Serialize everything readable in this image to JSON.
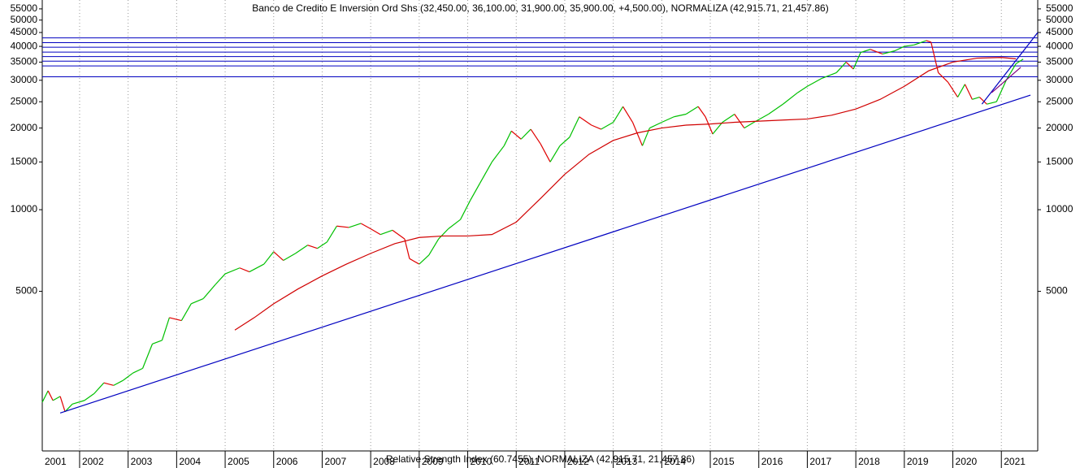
{
  "chart_data": {
    "type": "line",
    "title": "Banco de Credito E Inversion Ord Shs (32,450.00, 36,100.00, 31,900.00, 35,900.00, +4,500.00), NORMALIZA (42,915.71, 21,457.86)",
    "bottom_label": "Relative Strength Index (60.7455), NORMALIZA (42,915.71, 21,457.86)",
    "log_scale": true,
    "grid": true,
    "xlim": [
      2001.23,
      2021.75
    ],
    "xticks": [
      2001,
      2002,
      2003,
      2004,
      2005,
      2006,
      2007,
      2008,
      2009,
      2010,
      2011,
      2012,
      2013,
      2014,
      2015,
      2016,
      2017,
      2018,
      2019,
      2020,
      2021
    ],
    "ylim": [
      1290,
      59300
    ],
    "yticks": [
      5000,
      10000,
      15000,
      20000,
      25000,
      30000,
      35000,
      40000,
      45000,
      50000,
      55000
    ],
    "series": [
      {
        "up_color": "#00c000",
        "down_color": "#e00000",
        "x": [
          2001.23,
          2001.35,
          2001.45,
          2001.6,
          2001.7,
          2001.85,
          2002.1,
          2002.3,
          2002.5,
          2002.7,
          2002.9,
          2003.1,
          2003.3,
          2003.5,
          2003.7,
          2003.85,
          2004.1,
          2004.3,
          2004.55,
          2004.8,
          2005.0,
          2005.3,
          2005.5,
          2005.8,
          2006.0,
          2006.2,
          2006.45,
          2006.7,
          2006.9,
          2007.1,
          2007.3,
          2007.55,
          2007.8,
          2008.0,
          2008.2,
          2008.45,
          2008.7,
          2008.8,
          2009.0,
          2009.2,
          2009.4,
          2009.6,
          2009.85,
          2010.05,
          2010.25,
          2010.5,
          2010.75,
          2010.9,
          2011.1,
          2011.3,
          2011.5,
          2011.7,
          2011.9,
          2012.1,
          2012.3,
          2012.55,
          2012.75,
          2013.0,
          2013.2,
          2013.4,
          2013.6,
          2013.75,
          2014.0,
          2014.25,
          2014.5,
          2014.75,
          2014.9,
          2015.05,
          2015.25,
          2015.5,
          2015.7,
          2015.9,
          2016.2,
          2016.5,
          2016.8,
          2017.0,
          2017.3,
          2017.6,
          2017.8,
          2017.95,
          2018.1,
          2018.3,
          2018.55,
          2018.8,
          2019.0,
          2019.2,
          2019.45,
          2019.55,
          2019.7,
          2019.9,
          2020.1,
          2020.25,
          2020.4,
          2020.55,
          2020.7,
          2020.9,
          2021.1,
          2021.3,
          2021.45
        ],
        "values": [
          1950,
          2150,
          1980,
          2050,
          1800,
          1920,
          1980,
          2100,
          2300,
          2250,
          2350,
          2500,
          2600,
          3200,
          3300,
          4000,
          3900,
          4500,
          4700,
          5300,
          5800,
          6100,
          5900,
          6300,
          7000,
          6500,
          6900,
          7400,
          7200,
          7600,
          8700,
          8600,
          8900,
          8500,
          8100,
          8400,
          7800,
          6600,
          6300,
          6800,
          7800,
          8500,
          9200,
          10800,
          12500,
          15000,
          17200,
          19500,
          18200,
          19800,
          17500,
          15000,
          17200,
          18500,
          22000,
          20500,
          19800,
          21000,
          24000,
          21000,
          17200,
          20000,
          21000,
          22000,
          22500,
          24000,
          22000,
          19000,
          21000,
          22500,
          20000,
          21000,
          22500,
          24500,
          27000,
          28500,
          30500,
          32000,
          35000,
          33000,
          38000,
          39000,
          37500,
          38500,
          40000,
          40500,
          42000,
          41500,
          32000,
          29500,
          26000,
          29000,
          25500,
          26000,
          24500,
          25000,
          30000,
          34500,
          35900
        ]
      },
      {
        "color": "#d00000",
        "x": [
          2005.2,
          2005.6,
          2006.0,
          2006.5,
          2007.0,
          2007.5,
          2008.0,
          2008.5,
          2009.0,
          2009.5,
          2010.0,
          2010.5,
          2011.0,
          2011.5,
          2012.0,
          2012.5,
          2013.0,
          2013.5,
          2014.0,
          2014.5,
          2015.0,
          2015.5,
          2016.0,
          2016.5,
          2017.0,
          2017.5,
          2018.0,
          2018.5,
          2019.0,
          2019.5,
          2020.0,
          2020.5,
          2021.0,
          2021.3
        ],
        "values": [
          3600,
          4000,
          4500,
          5100,
          5700,
          6300,
          6900,
          7500,
          7900,
          8000,
          8000,
          8100,
          9000,
          11000,
          13500,
          16000,
          18000,
          19200,
          20000,
          20500,
          20700,
          21000,
          21200,
          21400,
          21600,
          22300,
          23500,
          25500,
          28500,
          32500,
          35000,
          36200,
          36400,
          36000
        ]
      },
      {
        "color": "#0000c0",
        "x": [
          2001.6,
          2021.6
        ],
        "values": [
          1780,
          26450
        ]
      },
      {
        "color": "#0000c0",
        "x": [
          2020.6,
          2021.75
        ],
        "values": [
          24500,
          45000
        ]
      },
      {
        "color": "#800080",
        "x": [
          2020.8,
          2021.4
        ],
        "values": [
          27000,
          33500
        ]
      }
    ],
    "hlines": {
      "color": "#0000c0",
      "values": [
        43000,
        41300,
        39700,
        38100,
        36700,
        35300,
        33900,
        30900
      ]
    }
  }
}
